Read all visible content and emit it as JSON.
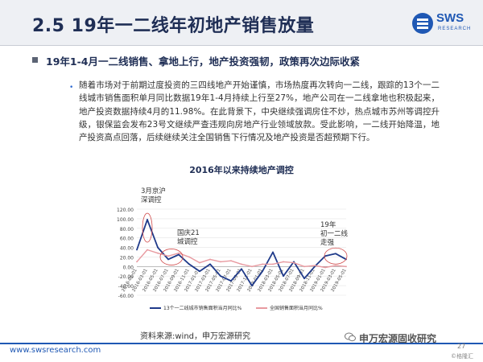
{
  "header": {
    "title": "2.5 19年一二线年初地产销售放量",
    "logo_text": "SWS",
    "logo_sub": "RESEARCH"
  },
  "section": {
    "heading": "19年1-4月一二线销售、拿地上行，地产投资强韧，政策再次边际收紧"
  },
  "body": {
    "bullet": "•",
    "text": "随着市场对于前期过度投资的三四线地产开始谨慎，市场热度再次转向一二线，跟踪的13个一二线城市销售面积单月同比数据19年1-4月持续上行至27%，地产公司在一二线拿地也积极起来，地产投资数据持续4月的11.98%。在此背景下，中央继续强调房住不炒，热点城市苏州等调控升级，银保监会发布23号文继续严查违规向房地产行业领域放款。受此影响，一二线开始降温，地产投资高点回落，后续继续关注全国销售下行情况及地产投资是否超预期下行。"
  },
  "chart_data": {
    "type": "line",
    "title": "2016年以来持续地产调控",
    "ylim": [
      -60,
      120
    ],
    "yticks": [
      "120.00",
      "100.00",
      "80.00",
      "60.00",
      "40.00",
      "20.00",
      "0.00",
      "-20.00",
      "-40.00",
      "-60.00"
    ],
    "x": [
      "2016-01-01",
      "2016-03-01",
      "2016-05-01",
      "2016-07-01",
      "2016-09-01",
      "2016-11-01",
      "2017-01-01",
      "2017-03-01",
      "2017-05-01",
      "2017-07-01",
      "2017-09-01",
      "2017-11-01",
      "2018-01-01",
      "2018-03-01",
      "2018-05-01",
      "2018-07-01",
      "2018-09-01",
      "2018-11-01",
      "2019-01-01",
      "2019-03-01",
      "2019-05-01"
    ],
    "series": [
      {
        "name": "13个一二线城市销售面积当月同比%",
        "color": "#1f3a8a",
        "values": [
          35,
          98,
          40,
          15,
          25,
          5,
          -10,
          5,
          -20,
          -30,
          -5,
          -40,
          -10,
          30,
          -20,
          10,
          -25,
          0,
          22,
          27,
          15
        ]
      },
      {
        "name": "全国销售面积当月同比%",
        "color": "#e89aa0",
        "values": [
          10,
          35,
          28,
          22,
          28,
          20,
          8,
          15,
          10,
          12,
          5,
          0,
          5,
          5,
          10,
          8,
          0,
          2,
          -2,
          2,
          0
        ]
      }
    ],
    "annotations": [
      "3月京沪深调控",
      "国庆21城调控",
      "19年初一二线走强"
    ]
  },
  "source": "资料来源:wind，申万宏源研究",
  "footer": {
    "url": "www.swsresearch.com",
    "watermark": "申万宏源固收研究",
    "watermark_small": "©格隆汇",
    "page_number": "27"
  },
  "colors": {
    "accent": "#1f58b4",
    "title": "#1f2e55"
  }
}
